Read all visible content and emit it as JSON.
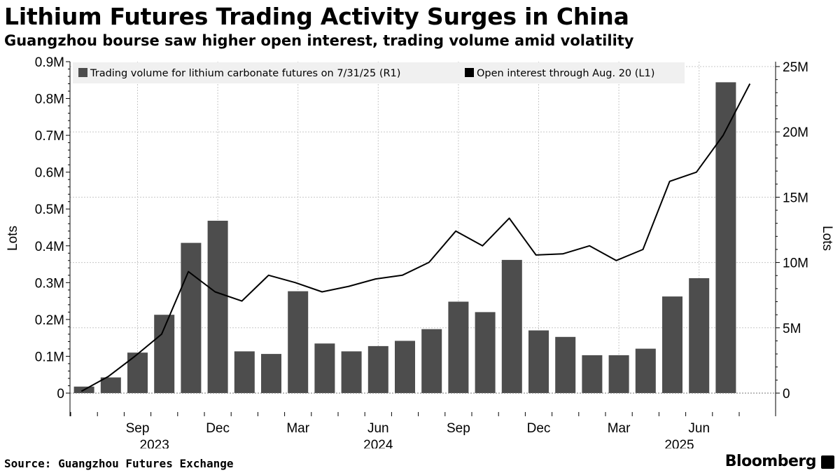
{
  "title": "Lithium Futures Trading Activity Surges in China",
  "subtitle": "Guangzhou bourse saw higher open interest, trading volume amid volatility",
  "source": "Source: Guangzhou Futures Exchange",
  "brand": "Bloomberg",
  "colors": {
    "bars": "#4d4d4d",
    "line": "#000000",
    "grid": "#c8c8c8",
    "legend_bg": "#f0f0f0"
  },
  "chart_data": {
    "type": "bar+line",
    "categories": [
      "Jul 2023",
      "Aug 2023",
      "Sep 2023",
      "Oct 2023",
      "Nov 2023",
      "Dec 2023",
      "Jan 2024",
      "Feb 2024",
      "Mar 2024",
      "Apr 2024",
      "May 2024",
      "Jun 2024",
      "Jul 2024",
      "Aug 2024",
      "Sep 2024",
      "Oct 2024",
      "Nov 2024",
      "Dec 2024",
      "Jan 2025",
      "Feb 2025",
      "Mar 2025",
      "Apr 2025",
      "May 2025",
      "Jun 2025",
      "Jul 2025"
    ],
    "series": [
      {
        "name": "Trading volume for lithium carbonate futures on 7/31/25 (R1)",
        "type": "bar",
        "axis": "right",
        "values": [
          0.5,
          1.2,
          3.1,
          6.0,
          11.5,
          13.2,
          3.2,
          3.0,
          7.8,
          3.8,
          3.2,
          3.6,
          4.0,
          4.9,
          7.0,
          6.2,
          10.2,
          4.8,
          4.3,
          2.9,
          2.9,
          3.4,
          7.4,
          8.8,
          23.8
        ]
      },
      {
        "name": "Open interest through Aug. 20 (L1)",
        "type": "line",
        "axis": "left",
        "x": [
          0.4,
          1.4,
          2.4,
          3.4,
          4.4,
          5.4,
          6.4,
          7.4,
          8.4,
          9.4,
          10.4,
          11.4,
          12.4,
          13.4,
          14.4,
          15.4,
          16.4,
          17.4,
          18.4,
          19.4,
          20.4,
          21.4,
          22.4,
          23.4,
          24.4,
          25.4
        ],
        "values": [
          0.005,
          0.045,
          0.1,
          0.16,
          0.33,
          0.275,
          0.25,
          0.32,
          0.3,
          0.275,
          0.29,
          0.31,
          0.32,
          0.355,
          0.44,
          0.4,
          0.475,
          0.375,
          0.378,
          0.4,
          0.36,
          0.39,
          0.575,
          0.6,
          0.7,
          0.84
        ]
      }
    ],
    "left_axis": {
      "label": "Lots",
      "range": [
        0,
        0.9
      ],
      "ticks": [
        "0",
        "0.1M",
        "0.2M",
        "0.3M",
        "0.4M",
        "0.5M",
        "0.6M",
        "0.7M",
        "0.8M",
        "0.9M"
      ]
    },
    "right_axis": {
      "label": "Lots",
      "range": [
        0,
        25
      ],
      "ticks": [
        "0",
        "5M",
        "10M",
        "15M",
        "20M",
        "25M"
      ]
    },
    "x_axis": {
      "month_labels": [
        {
          "label": "Sep",
          "index": 2
        },
        {
          "label": "Dec",
          "index": 5
        },
        {
          "label": "Mar",
          "index": 8
        },
        {
          "label": "Jun",
          "index": 11
        },
        {
          "label": "Sep",
          "index": 14
        },
        {
          "label": "Dec",
          "index": 17
        },
        {
          "label": "Mar",
          "index": 20
        },
        {
          "label": "Jun",
          "index": 23
        }
      ],
      "year_labels": [
        {
          "label": "2023",
          "index": 3
        },
        {
          "label": "2024",
          "index": 11
        },
        {
          "label": "2025",
          "index": 22
        }
      ]
    },
    "legend_position": "top-left"
  }
}
